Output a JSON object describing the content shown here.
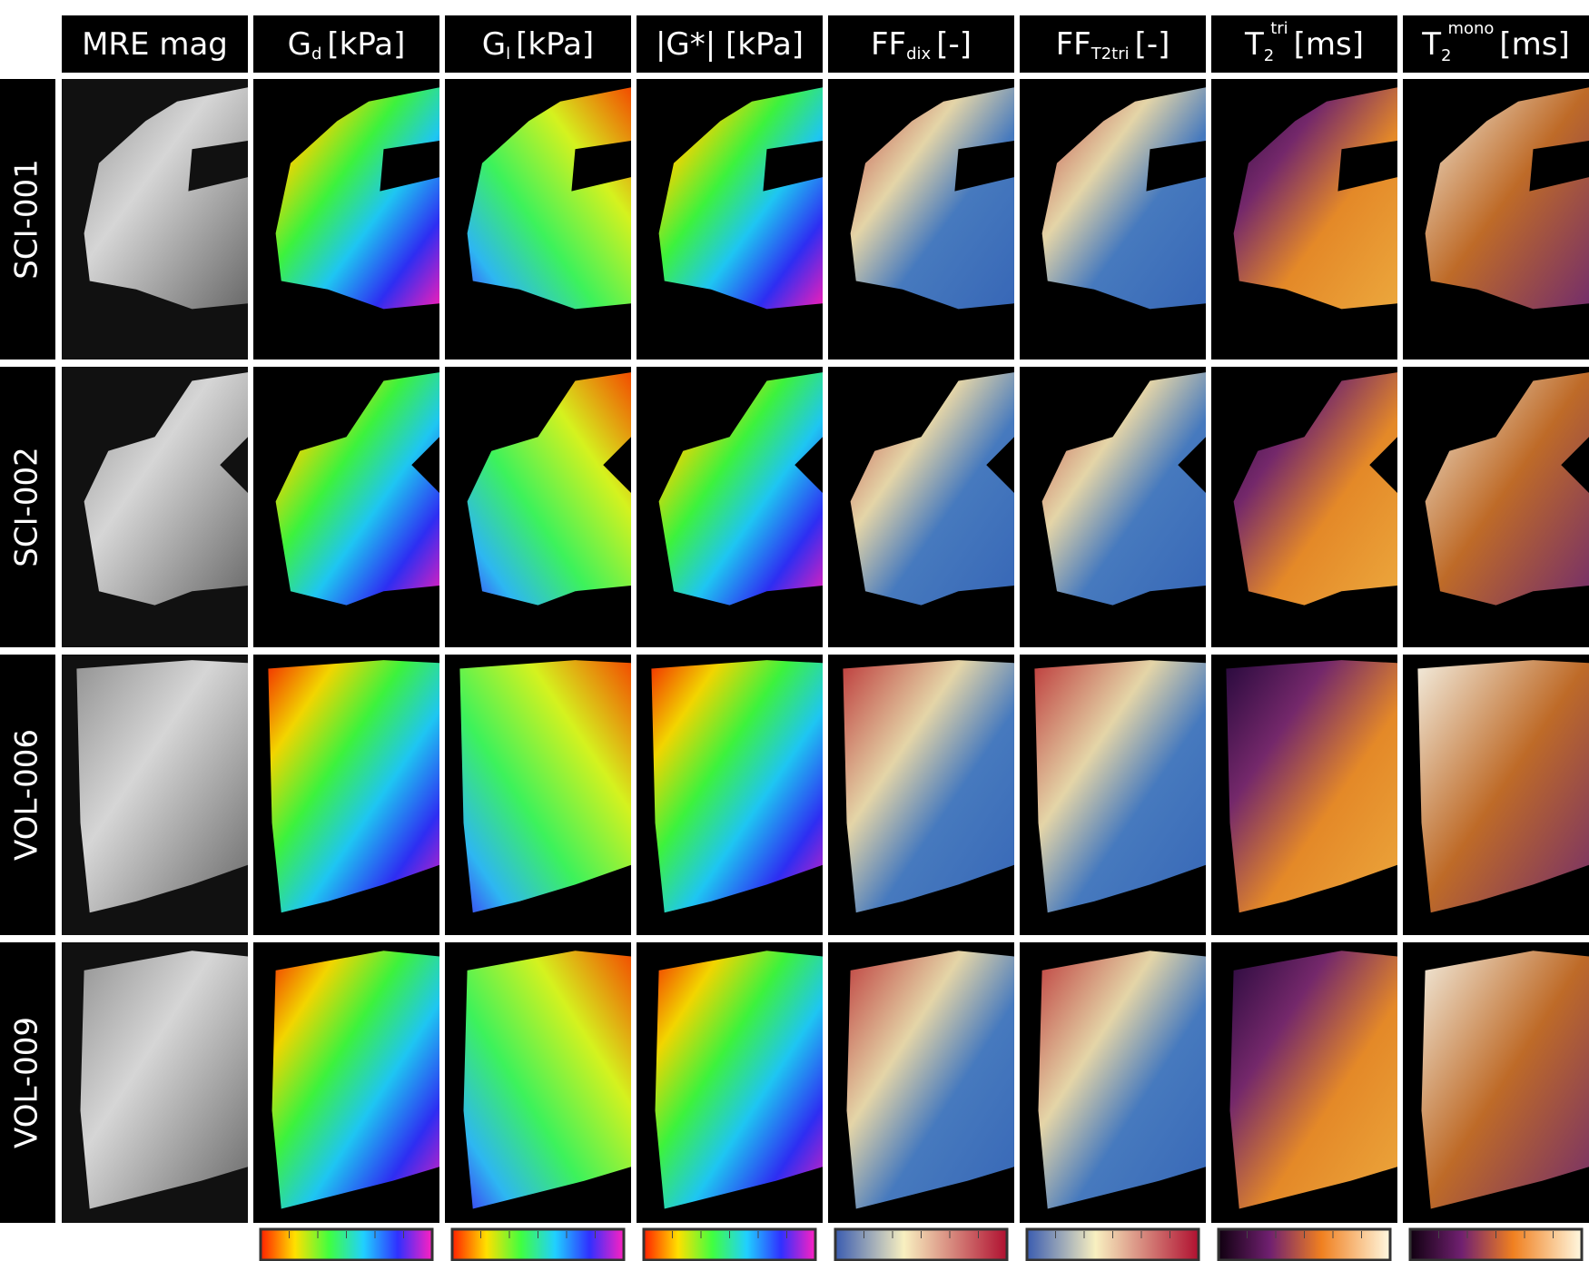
{
  "headers": [
    {
      "base": "MRE mag"
    },
    {
      "base": "G",
      "sub": "d",
      "unit": "[kPa]"
    },
    {
      "base": "G",
      "sub": "l",
      "unit": "[kPa]"
    },
    {
      "base": "|G*| [kPa]"
    },
    {
      "base": "FF",
      "sub": "dix",
      "unit": "[-]"
    },
    {
      "base": "FF",
      "sub": "T2tri",
      "unit": "[-]"
    },
    {
      "base": "T",
      "sub": "2",
      "sup": "tri",
      "unit": "[ms]"
    },
    {
      "base": "T",
      "sub": "2",
      "sup": "mono",
      "unit": "[ms]"
    }
  ],
  "rows": [
    "SCI-001",
    "SCI-002",
    "VOL-006",
    "VOL-009"
  ]
}
